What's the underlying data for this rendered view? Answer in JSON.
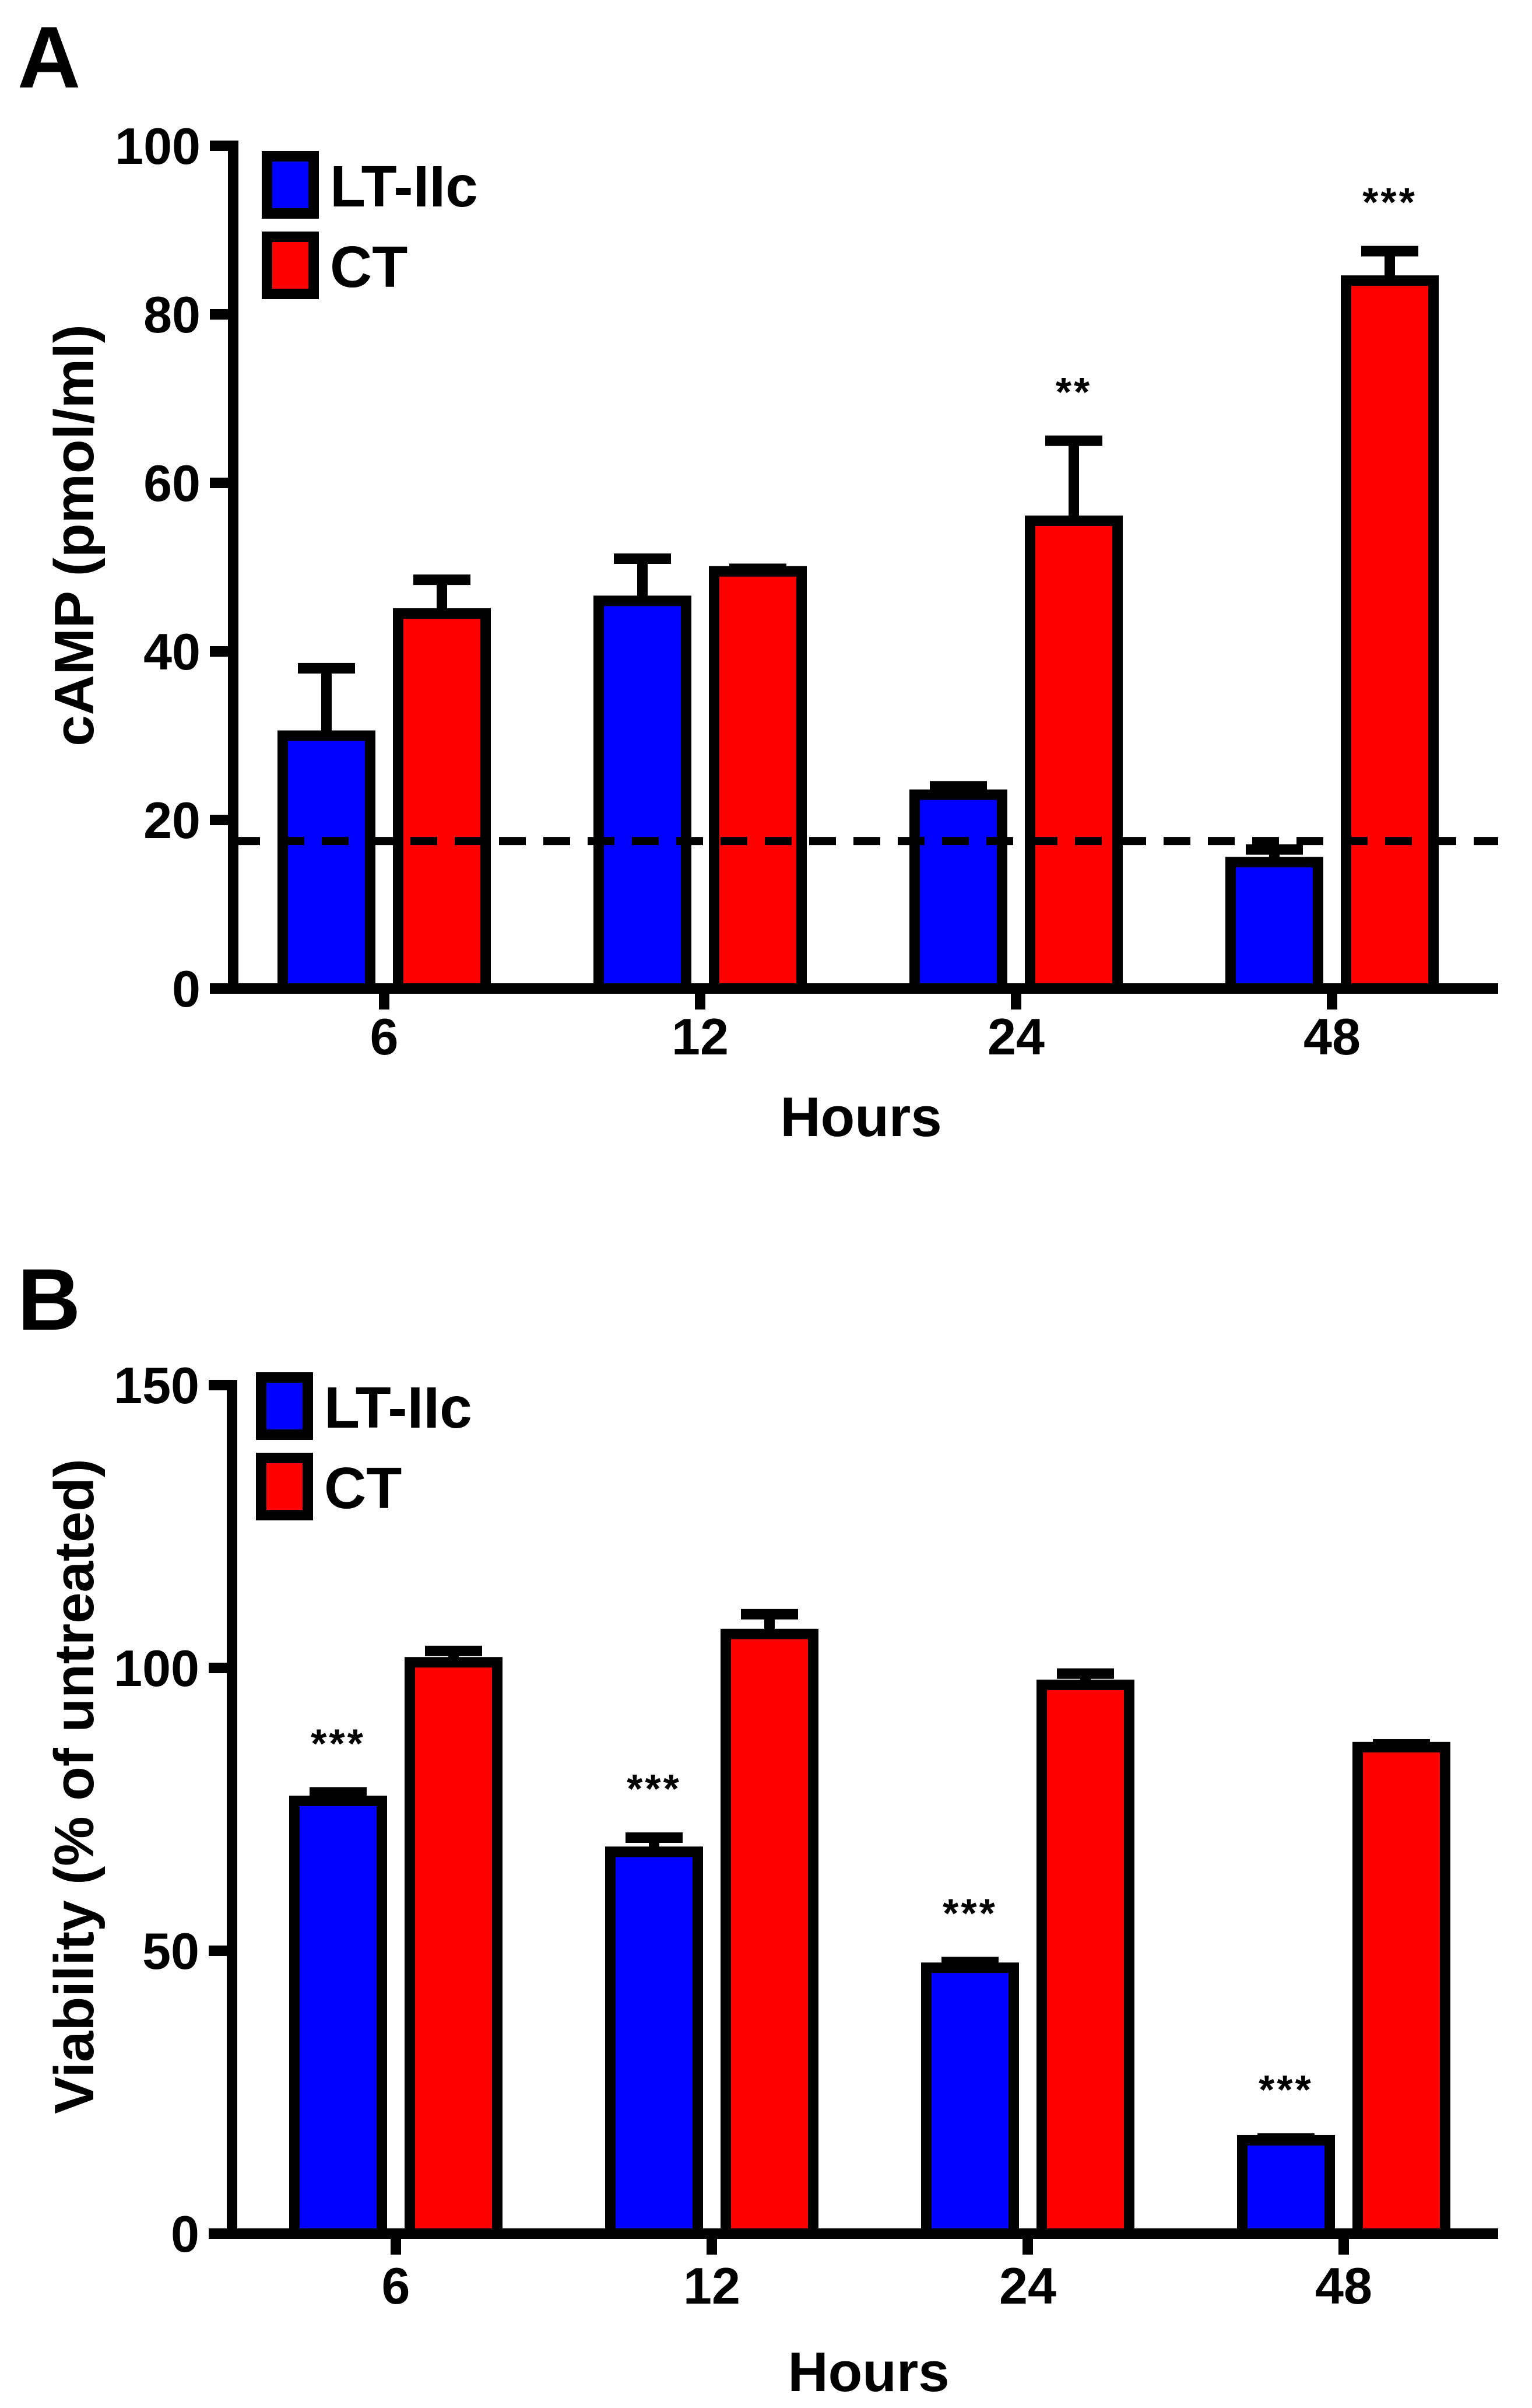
{
  "colors": {
    "lt_iic": "#0000ff",
    "ct": "#ff0000",
    "stroke": "#000000",
    "background": "#ffffff"
  },
  "chart_data": [
    {
      "panel": "A",
      "type": "bar",
      "title": "",
      "xlabel": "Hours",
      "ylabel": "cAMP (pmol/ml)",
      "categories": [
        "6",
        "12",
        "24",
        "48"
      ],
      "ylim": [
        0,
        100
      ],
      "yticks": [
        "0",
        "20",
        "40",
        "60",
        "80",
        "100"
      ],
      "series": [
        {
          "name": "LT-IIc",
          "color": "#0000ff",
          "values": [
            30,
            46,
            23,
            15
          ],
          "errors": [
            8,
            5,
            1,
            1.5
          ]
        },
        {
          "name": "CT",
          "color": "#ff0000",
          "values": [
            44.5,
            49.5,
            55.5,
            84
          ],
          "errors": [
            4,
            0.3,
            9.5,
            3.5
          ]
        }
      ],
      "significance": [
        {
          "category": "24",
          "series": "CT",
          "label": "**"
        },
        {
          "category": "48",
          "series": "CT",
          "label": "***"
        }
      ],
      "reference_line": {
        "y": 17.5,
        "style": "dashed"
      },
      "legend": "top-left",
      "grid": false
    },
    {
      "panel": "B",
      "type": "bar",
      "title": "",
      "xlabel": "Hours",
      "ylabel": "Viability (% of untreated)",
      "categories": [
        "6",
        "12",
        "24",
        "48"
      ],
      "ylim": [
        0,
        150
      ],
      "yticks": [
        "0",
        "50",
        "100",
        "150"
      ],
      "series": [
        {
          "name": "LT-IIc",
          "color": "#0000ff",
          "values": [
            76.5,
            67.5,
            47,
            16.5
          ],
          "errors": [
            1.5,
            2.5,
            1,
            0.3
          ]
        },
        {
          "name": "CT",
          "color": "#ff0000",
          "values": [
            101,
            106,
            97,
            86
          ],
          "errors": [
            2,
            3.5,
            2,
            0.5
          ]
        }
      ],
      "significance": [
        {
          "category": "6",
          "series": "LT-IIc",
          "label": "***"
        },
        {
          "category": "12",
          "series": "LT-IIc",
          "label": "***"
        },
        {
          "category": "24",
          "series": "LT-IIc",
          "label": "***"
        },
        {
          "category": "48",
          "series": "LT-IIc",
          "label": "***"
        }
      ],
      "legend": "top-left",
      "grid": false
    }
  ]
}
